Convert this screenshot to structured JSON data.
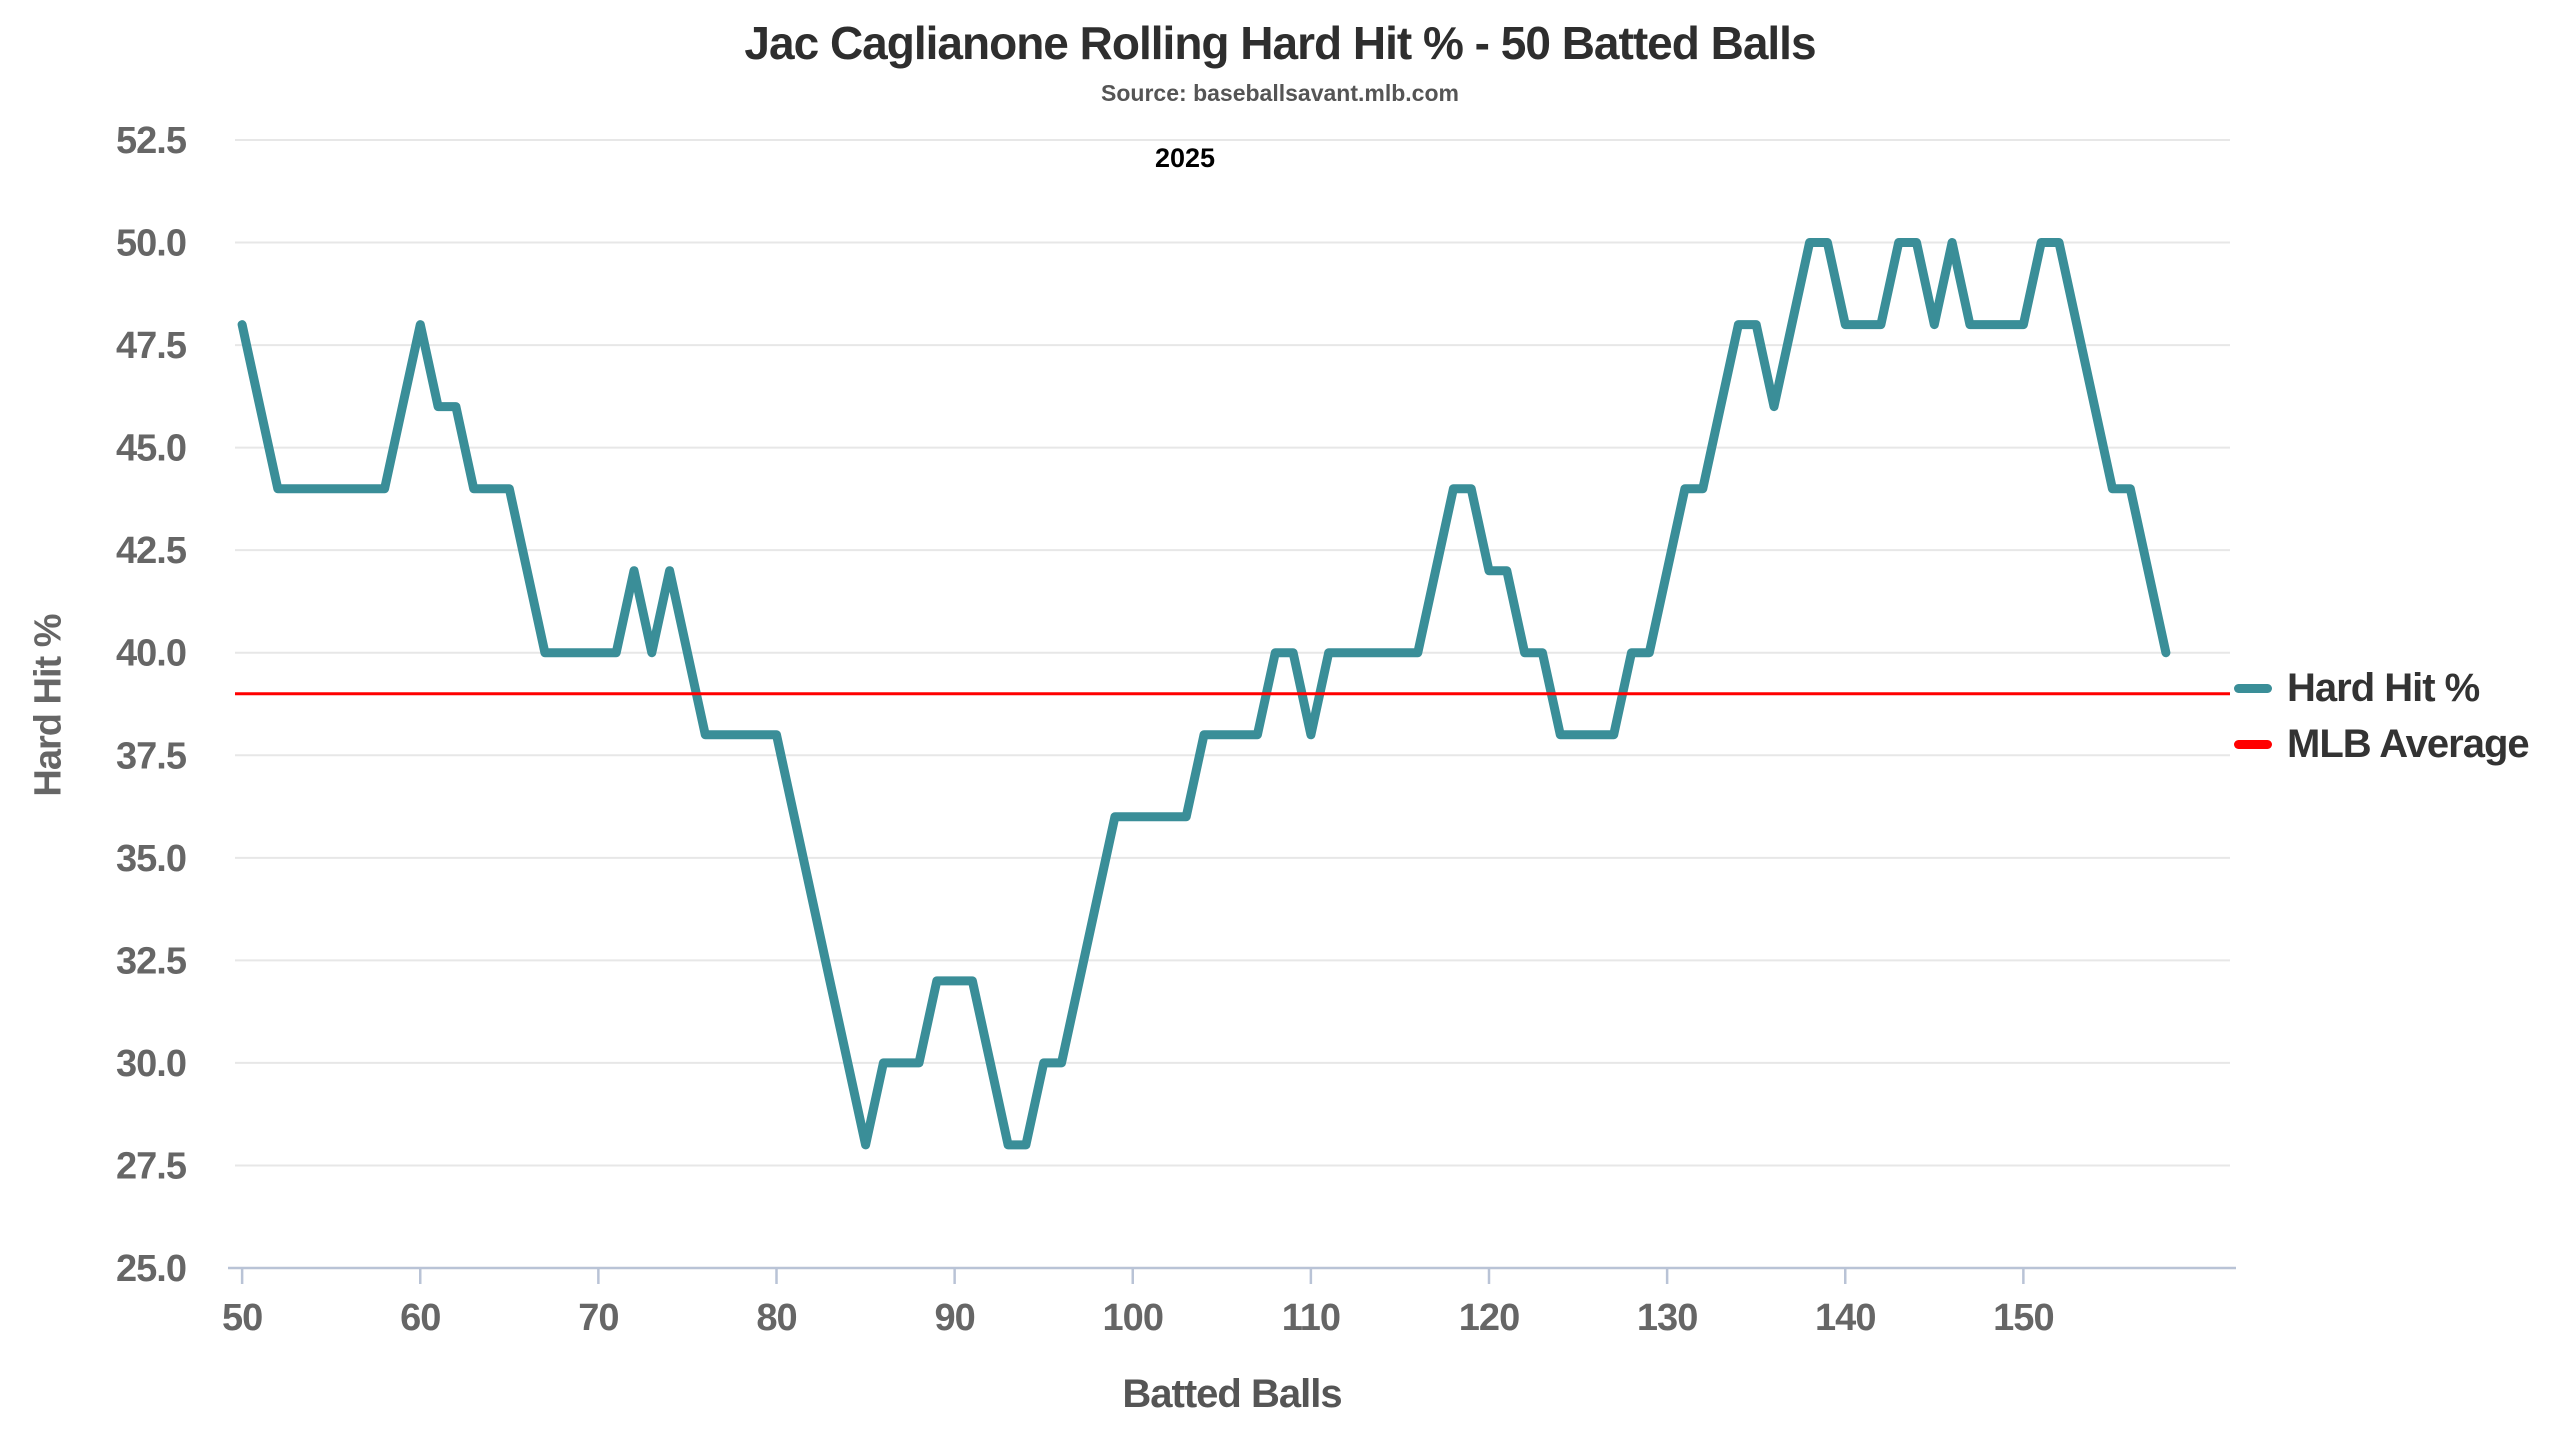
{
  "header": {
    "title": "Jac Caglianone Rolling Hard Hit % - 50 Batted Balls",
    "subtitle": "Source: baseballsavant.mlb.com",
    "annotation_year": "2025"
  },
  "axes": {
    "x_label": "Batted Balls",
    "y_label": "Hard Hit %"
  },
  "legend": [
    {
      "label": "Hard Hit %",
      "color": "#3a8e98"
    },
    {
      "label": "MLB Average",
      "color": "#ff0000"
    }
  ],
  "colors": {
    "series_line": "#3a8e98",
    "average_line": "#ff0000",
    "gridline": "#e7e7e7",
    "axis_spine": "#b9c3d6",
    "tick_label": "#666666",
    "title_text": "#2e2e2e",
    "subtitle_text": "#555555",
    "legend_text": "#333333"
  },
  "chart_data": {
    "type": "line",
    "title": "Jac Caglianone Rolling Hard Hit % - 50 Batted Balls",
    "subtitle": "Source: baseballsavant.mlb.com",
    "annotation": "2025",
    "xlabel": "Batted Balls",
    "ylabel": "Hard Hit %",
    "grid": "horizontal",
    "legend_position": "right-outside",
    "xlim": [
      49.6,
      161.6
    ],
    "ylim": [
      25.0,
      52.5
    ],
    "xticks": [
      50,
      60,
      70,
      80,
      90,
      100,
      110,
      120,
      130,
      140,
      150
    ],
    "yticks": [
      25.0,
      27.5,
      30.0,
      32.5,
      35.0,
      37.5,
      40.0,
      42.5,
      45.0,
      47.5,
      50.0,
      52.5
    ],
    "x": [
      50,
      51,
      52,
      53,
      54,
      55,
      56,
      57,
      58,
      59,
      60,
      61,
      62,
      63,
      64,
      65,
      66,
      67,
      68,
      69,
      70,
      71,
      72,
      73,
      74,
      75,
      76,
      77,
      78,
      79,
      80,
      81,
      82,
      83,
      84,
      85,
      86,
      87,
      88,
      89,
      90,
      91,
      92,
      93,
      94,
      95,
      96,
      97,
      98,
      99,
      100,
      101,
      102,
      103,
      104,
      105,
      106,
      107,
      108,
      109,
      110,
      111,
      112,
      113,
      114,
      115,
      116,
      117,
      118,
      119,
      120,
      121,
      122,
      123,
      124,
      125,
      126,
      127,
      128,
      129,
      130,
      131,
      132,
      133,
      134,
      135,
      136,
      137,
      138,
      139,
      140,
      141,
      142,
      143,
      144,
      145,
      146,
      147,
      148,
      149,
      150,
      151,
      152,
      153,
      154,
      155,
      156,
      157,
      158
    ],
    "series": [
      {
        "name": "Hard Hit %",
        "type": "line",
        "color": "#3a8e98",
        "values": [
          48,
          46,
          44,
          44,
          44,
          44,
          44,
          44,
          44,
          46,
          48,
          46,
          46,
          44,
          44,
          44,
          42,
          40,
          40,
          40,
          40,
          40,
          42,
          40,
          42,
          40,
          38,
          38,
          38,
          38,
          38,
          36,
          34,
          32,
          30,
          28,
          30,
          30,
          30,
          32,
          32,
          32,
          30,
          28,
          28,
          30,
          30,
          32,
          34,
          36,
          36,
          36,
          36,
          36,
          38,
          38,
          38,
          38,
          40,
          40,
          38,
          40,
          40,
          40,
          40,
          40,
          40,
          42,
          44,
          44,
          42,
          42,
          40,
          40,
          38,
          38,
          38,
          38,
          40,
          40,
          42,
          44,
          44,
          46,
          48,
          48,
          46,
          48,
          50,
          50,
          48,
          48,
          48,
          50,
          50,
          48,
          50,
          48,
          48,
          48,
          48,
          50,
          50,
          48,
          46,
          44,
          44,
          42,
          40
        ]
      },
      {
        "name": "MLB Average",
        "type": "hline",
        "color": "#ff0000",
        "value": 39.0
      }
    ]
  }
}
